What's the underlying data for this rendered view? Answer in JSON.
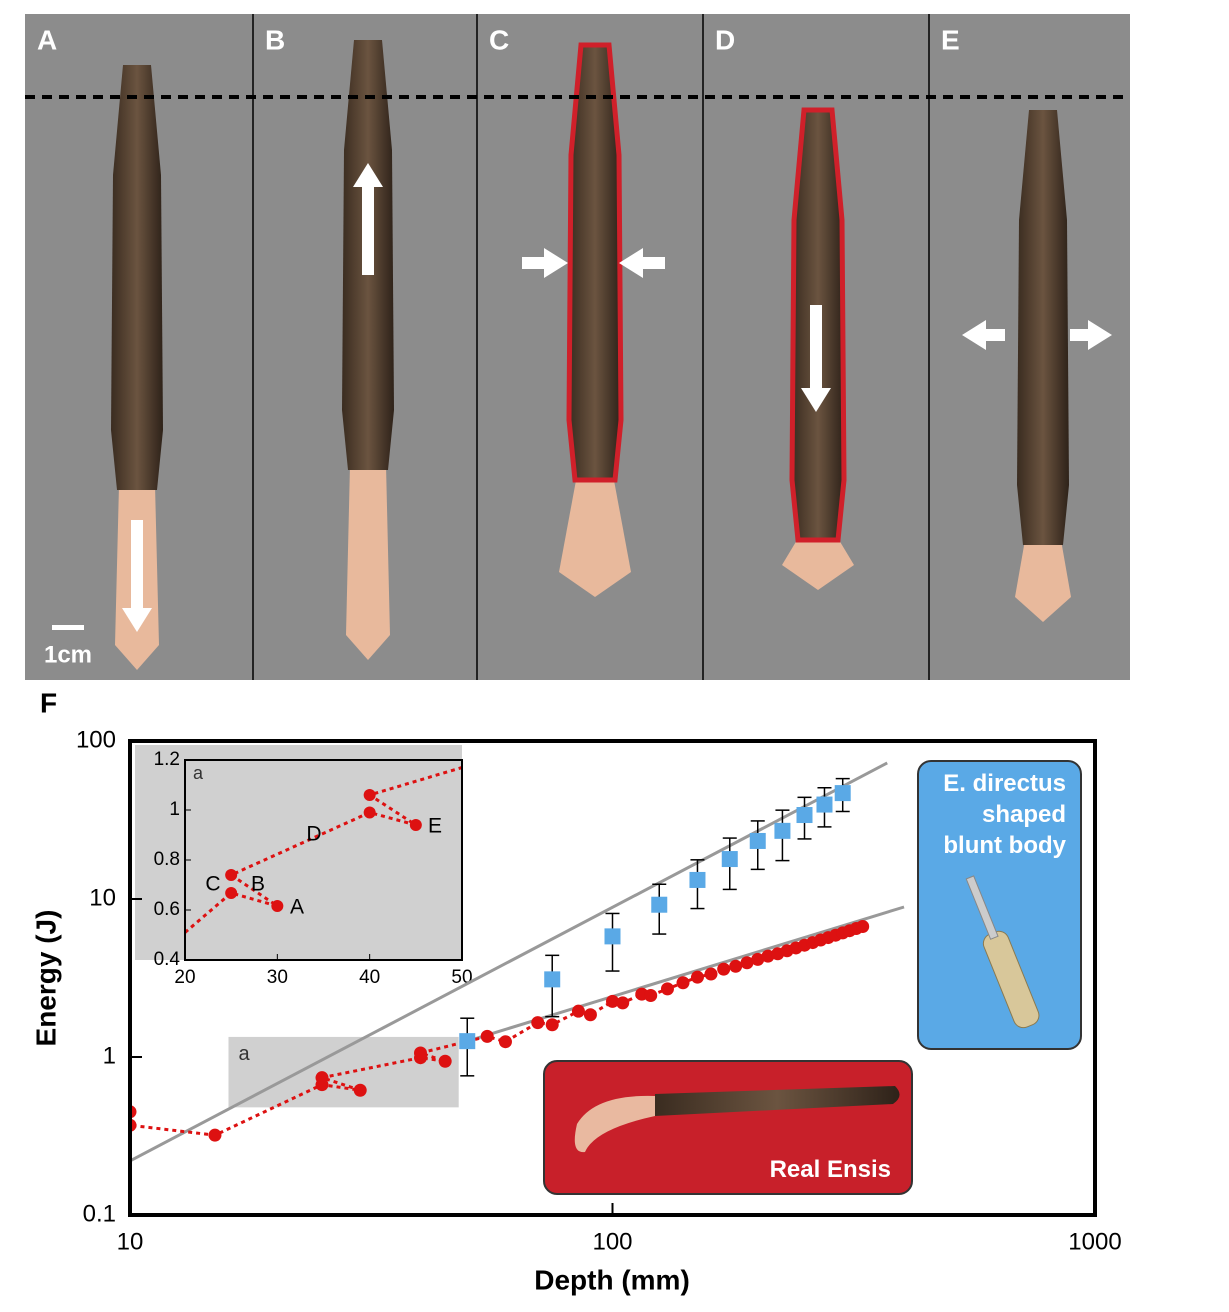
{
  "panels": {
    "labels": [
      "A",
      "B",
      "C",
      "D",
      "E"
    ],
    "scale_bar": "1cm"
  },
  "panel_f_label": "F",
  "chart_data": {
    "type": "line",
    "xlabel": "Depth (mm)",
    "ylabel": "Energy (J)",
    "log_x": true,
    "log_y": true,
    "xlim": [
      10,
      1000
    ],
    "ylim": [
      0.1,
      100
    ],
    "xticks": [
      10,
      100,
      1000
    ],
    "yticks": [
      0.1,
      1,
      10,
      100
    ],
    "series": [
      {
        "name": "E. directus shaped blunt body",
        "color": "#5aa9e6",
        "marker": "square",
        "x": [
          50,
          75,
          100,
          125,
          150,
          175,
          200,
          225,
          250,
          275,
          300
        ],
        "values": [
          1.26,
          3.1,
          5.8,
          9.2,
          13.2,
          17.9,
          23.3,
          27,
          34,
          39.6,
          46.8
        ],
        "errors": [
          0.5,
          1.3,
          2.3,
          3.2,
          4.5,
          6.4,
          7.9,
          9.5,
          10,
          11,
          11
        ]
      },
      {
        "name": "Real Ensis",
        "color": "#dd1111",
        "marker": "circle",
        "line": "dotted",
        "x": [
          10,
          10,
          15,
          25,
          30,
          25,
          40,
          45,
          40,
          55,
          60,
          70,
          75,
          85,
          90,
          100,
          105,
          115,
          120,
          130,
          140,
          150,
          160,
          170,
          180,
          190,
          200,
          210,
          220,
          230,
          240,
          250,
          260,
          270,
          280,
          290,
          300,
          310,
          320,
          330
        ],
        "values": [
          0.45,
          0.37,
          0.32,
          0.668,
          0.616,
          0.74,
          0.99,
          0.94,
          1.06,
          1.35,
          1.25,
          1.65,
          1.6,
          1.95,
          1.85,
          2.25,
          2.2,
          2.5,
          2.45,
          2.7,
          2.95,
          3.2,
          3.35,
          3.6,
          3.75,
          3.95,
          4.15,
          4.35,
          4.5,
          4.7,
          4.9,
          5.1,
          5.3,
          5.5,
          5.7,
          5.9,
          6.1,
          6.3,
          6.5,
          6.7
        ]
      },
      {
        "color": "#999999",
        "x": [
          10,
          371
        ],
        "values": [
          0.22,
          72.6
        ]
      },
      {
        "color": "#999999",
        "x": [
          50,
          402
        ],
        "values": [
          1.26,
          8.9
        ]
      }
    ],
    "highlight": {
      "label": "a",
      "xlim": [
        16,
        48
      ],
      "ylim": [
        0.48,
        1.34
      ]
    },
    "inset": {
      "label": "a",
      "xlim": [
        20,
        50
      ],
      "ylim": [
        0.4,
        1.2
      ],
      "xticks": [
        20,
        30,
        40,
        50
      ],
      "yticks": [
        0.4,
        0.6,
        0.8,
        1,
        1.2
      ],
      "color": "#dd1111",
      "x": [
        20,
        25,
        30,
        25,
        40,
        45,
        40,
        50
      ],
      "values": [
        0.51,
        0.668,
        0.616,
        0.74,
        0.99,
        0.94,
        1.06,
        1.17
      ],
      "markers": [
        false,
        true,
        true,
        true,
        true,
        true,
        true,
        false
      ],
      "annotations": [
        "C",
        "B",
        "A",
        "D",
        "E"
      ]
    }
  }
}
